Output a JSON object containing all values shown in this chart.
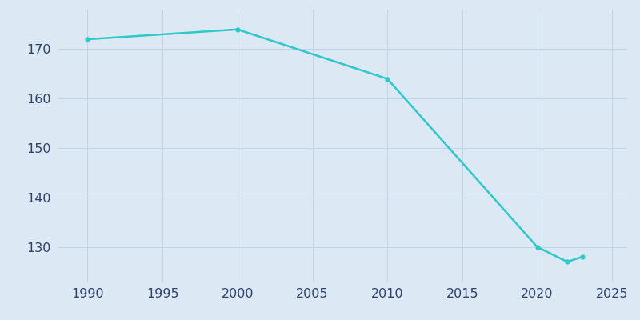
{
  "years": [
    1990,
    2000,
    2010,
    2020,
    2022,
    2023
  ],
  "population": [
    172,
    174,
    164,
    130,
    127,
    128
  ],
  "line_color": "#2ec8c8",
  "marker": "o",
  "marker_size": 3.5,
  "line_width": 1.8,
  "background_color": "#dce9f5",
  "plot_bg_color": "#dce9f5",
  "grid_color": "#c5d5e8",
  "tick_color": "#2e3f6e",
  "xlim": [
    1988,
    2026
  ],
  "ylim": [
    123,
    178
  ],
  "xticks": [
    1990,
    1995,
    2000,
    2005,
    2010,
    2015,
    2020,
    2025
  ],
  "yticks": [
    130,
    140,
    150,
    160,
    170
  ],
  "tick_fontsize": 11.5
}
